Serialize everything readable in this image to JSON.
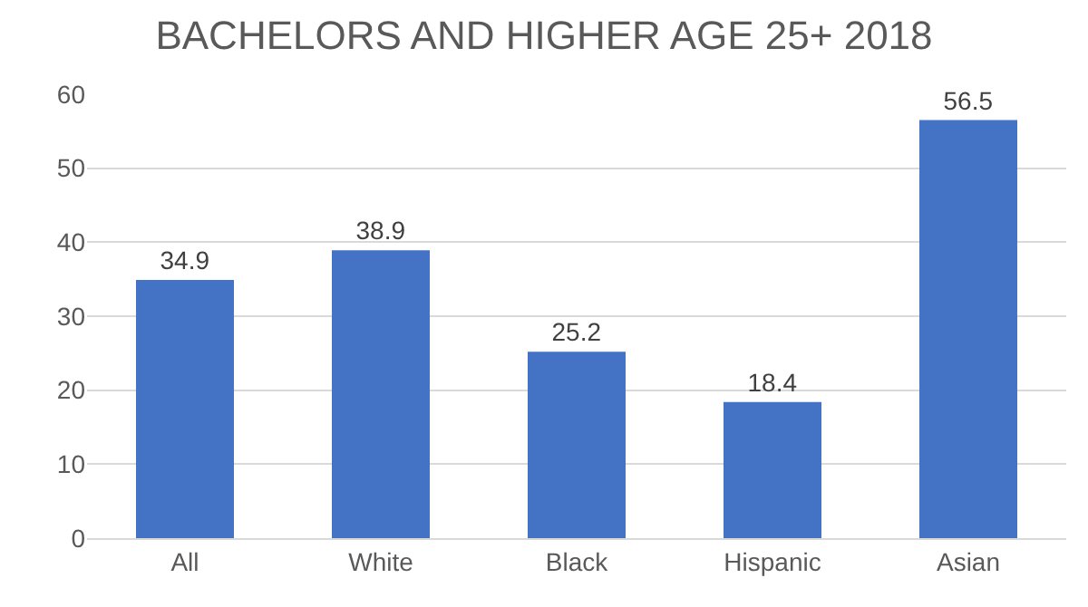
{
  "chart_data": {
    "type": "bar",
    "title": "BACHELORS AND HIGHER AGE 25+ 2018",
    "categories": [
      "All",
      "White",
      "Black",
      "Hispanic",
      "Asian"
    ],
    "values": [
      34.9,
      38.9,
      25.2,
      18.4,
      56.5
    ],
    "color": "#4472c4",
    "ylim": [
      0,
      60
    ],
    "yticks": [
      0,
      10,
      20,
      30,
      40,
      50,
      60
    ],
    "grid": "y",
    "data_labels": true
  }
}
